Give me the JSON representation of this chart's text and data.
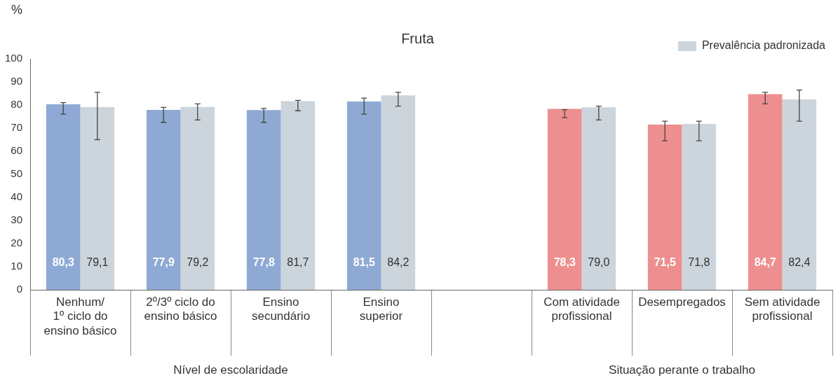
{
  "chart_data": {
    "type": "bar",
    "title": "Fruta",
    "ylabel": "%",
    "categories": [
      "Nenhum/\n1º ciclo do\nensino básico",
      "2º/3º ciclo do\nensino básico",
      "Ensino\nsecundário",
      "Ensino\nsuperior",
      null,
      "Com atividade\nprofissional",
      "Desempregados",
      "Sem atividade\nprofissional"
    ],
    "series": [
      {
        "colors": [
          "#8eaad4",
          "#8eaad4",
          "#8eaad4",
          "#8eaad4",
          null,
          "#ee8f8f",
          "#ee8f8f",
          "#ee8f8f"
        ],
        "values": [
          80.3,
          77.9,
          77.8,
          81.5,
          null,
          78.3,
          71.5,
          84.7
        ],
        "value_labels": [
          "80,3",
          "77,9",
          "77,8",
          "81,5",
          null,
          "78,3",
          "71,5",
          "84,7"
        ],
        "errors": [
          [
            76,
            81
          ],
          [
            72.5,
            79
          ],
          [
            72.5,
            78.5
          ],
          [
            76,
            83
          ],
          null,
          [
            74.5,
            78
          ],
          [
            64.5,
            73
          ],
          [
            80.5,
            85.5
          ]
        ]
      },
      {
        "name": "Prevalência padronizada",
        "color": "#ccd5dc",
        "values": [
          79.1,
          79.2,
          81.7,
          84.2,
          null,
          79.0,
          71.8,
          82.4
        ],
        "value_labels": [
          "79,1",
          "79,2",
          "81,7",
          "84,2",
          null,
          "79,0",
          "71,8",
          "82,4"
        ],
        "errors": [
          [
            65,
            85.5
          ],
          [
            73.5,
            80.5
          ],
          [
            77.5,
            82
          ],
          [
            79.5,
            85.5
          ],
          null,
          [
            73.5,
            79.5
          ],
          [
            64.5,
            73
          ],
          [
            73,
            86.5
          ]
        ]
      }
    ],
    "ylim": [
      0,
      100
    ],
    "yticks": [
      0,
      10,
      20,
      30,
      40,
      50,
      60,
      70,
      80,
      90,
      100
    ],
    "grid": false,
    "legend": "top right",
    "annotations": [
      "Nível de escolaridade",
      "Situação perante o trabalho"
    ]
  }
}
